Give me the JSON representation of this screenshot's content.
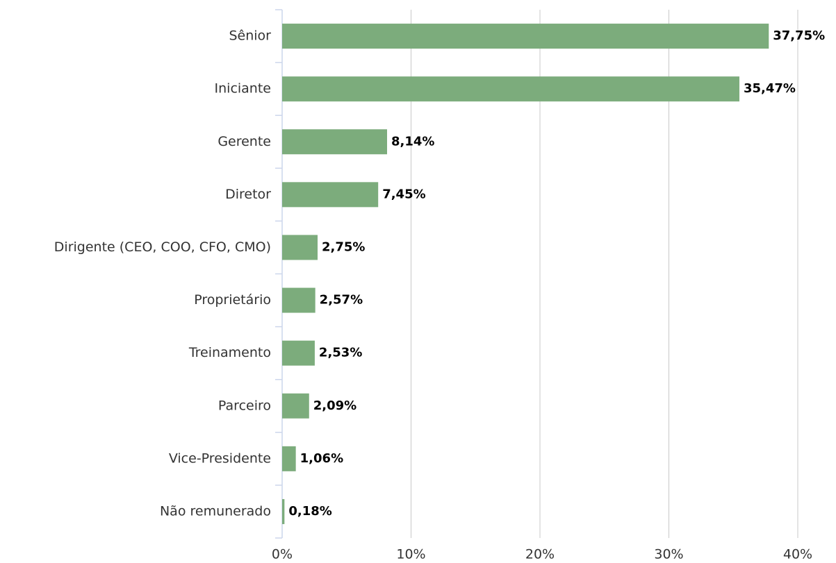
{
  "chart_data": {
    "type": "bar",
    "orientation": "horizontal",
    "categories": [
      "Sênior",
      "Iniciante",
      "Gerente",
      "Diretor",
      "Dirigente (CEO, COO, CFO, CMO)",
      "Proprietário",
      "Treinamento",
      "Parceiro",
      "Vice-Presidente",
      "Não remunerado"
    ],
    "values": [
      37.75,
      35.47,
      8.14,
      7.45,
      2.75,
      2.57,
      2.53,
      2.09,
      1.06,
      0.18
    ],
    "value_labels": [
      "37,75%",
      "35,47%",
      "8,14%",
      "7,45%",
      "2,75%",
      "2,57%",
      "2,53%",
      "2,09%",
      "1,06%",
      "0,18%"
    ],
    "color": "#7cac7c",
    "xlim": [
      0,
      40
    ],
    "xticks": [
      {
        "value": 0,
        "label": "0%"
      },
      {
        "value": 10,
        "label": "10%"
      },
      {
        "value": 20,
        "label": "20%"
      },
      {
        "value": 30,
        "label": "30%"
      },
      {
        "value": 40,
        "label": "40%"
      }
    ],
    "grid": true
  }
}
